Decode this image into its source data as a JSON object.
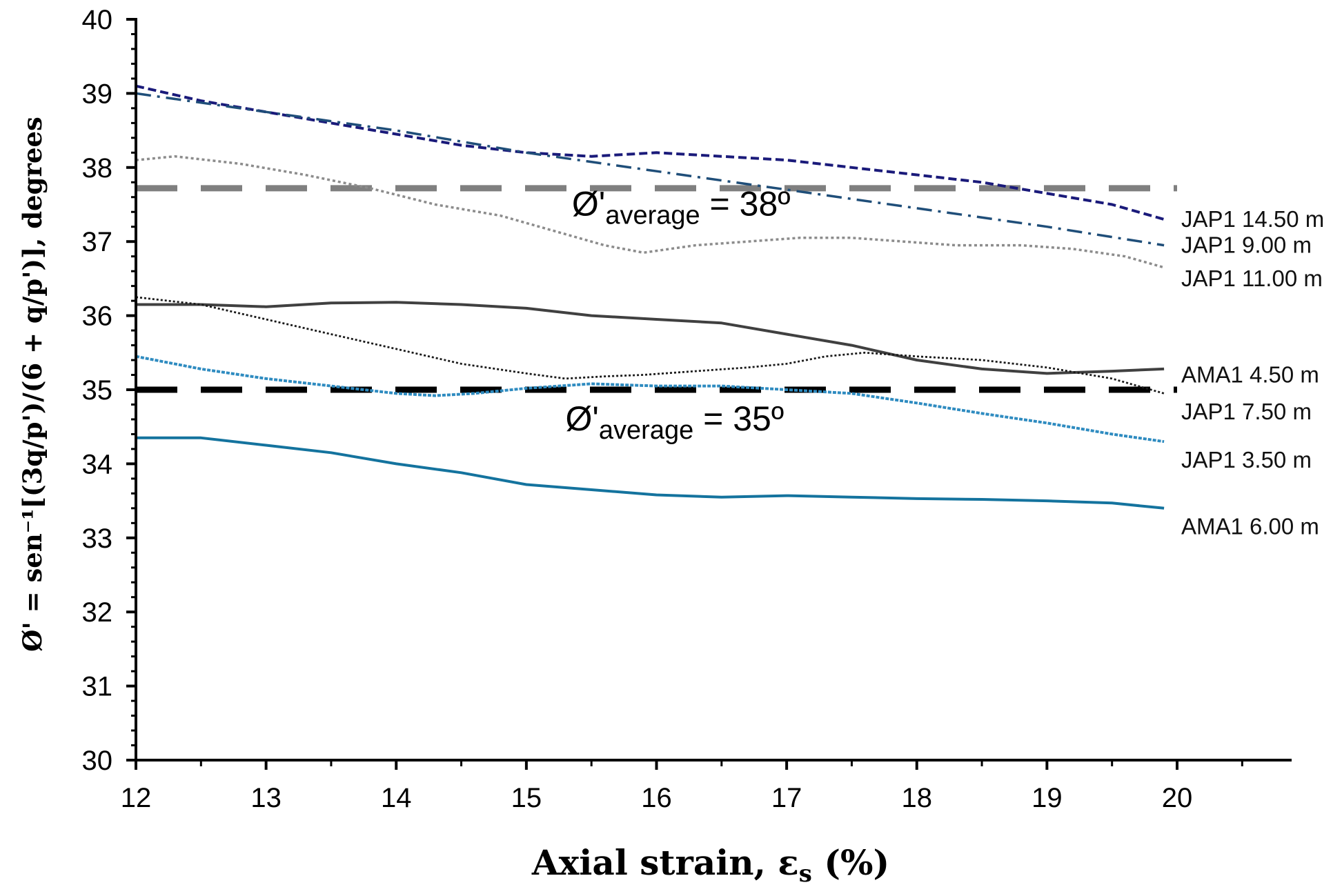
{
  "chart_data": {
    "type": "line",
    "title": "",
    "xlabel_prefix": "Axial strain, ε",
    "xlabel_sub": "s",
    "xlabel_suffix": " (%)",
    "ylabel": "Ø' = sen⁻¹[(3q/p')/(6 + q/p')], degrees",
    "xlim": [
      12,
      20.9
    ],
    "ylim": [
      30,
      40
    ],
    "x_ticks": [
      "12",
      "13",
      "14",
      "15",
      "16",
      "17",
      "18",
      "19",
      "20"
    ],
    "y_ticks": [
      "30",
      "31",
      "32",
      "33",
      "34",
      "35",
      "36",
      "37",
      "38",
      "39",
      "40"
    ],
    "grid": false,
    "series": [
      {
        "name": "JAP1 14.50 m",
        "color": "#1a1a7a",
        "dash": "dash-fine",
        "x": [
          12.0,
          12.5,
          13.0,
          13.5,
          14.0,
          14.5,
          15.0,
          15.5,
          16.0,
          16.5,
          17.0,
          17.5,
          18.0,
          18.5,
          19.0,
          19.5,
          19.9
        ],
        "y": [
          39.1,
          38.9,
          38.75,
          38.6,
          38.45,
          38.3,
          38.2,
          38.15,
          38.2,
          38.15,
          38.1,
          38.0,
          37.9,
          37.8,
          37.65,
          37.5,
          37.3
        ]
      },
      {
        "name": "JAP1 9.00 m",
        "color": "#1f4e79",
        "dash": "dash-dot",
        "x": [
          12.0,
          13.0,
          14.0,
          15.0,
          16.0,
          17.0,
          18.0,
          19.0,
          19.9
        ],
        "y": [
          39.0,
          38.75,
          38.5,
          38.2,
          37.95,
          37.7,
          37.45,
          37.2,
          36.95
        ]
      },
      {
        "name": "JAP1 11.00 m",
        "color": "#8c8c8c",
        "dash": "dot",
        "x": [
          12.0,
          12.3,
          12.8,
          13.3,
          13.8,
          14.3,
          14.8,
          15.2,
          15.6,
          15.9,
          16.3,
          16.7,
          17.1,
          17.5,
          17.9,
          18.3,
          18.8,
          19.2,
          19.6,
          19.9
        ],
        "y": [
          38.1,
          38.15,
          38.05,
          37.9,
          37.72,
          37.5,
          37.35,
          37.15,
          36.95,
          36.85,
          36.95,
          37.0,
          37.05,
          37.05,
          37.0,
          36.95,
          36.95,
          36.9,
          36.8,
          36.65
        ]
      },
      {
        "name": "AMA1 4.50 m",
        "color": "#404040",
        "dash": "solid",
        "x": [
          12.0,
          12.5,
          13.0,
          13.5,
          14.0,
          14.5,
          15.0,
          15.5,
          16.0,
          16.5,
          17.0,
          17.5,
          18.0,
          18.5,
          19.0,
          19.5,
          19.9
        ],
        "y": [
          36.15,
          36.15,
          36.12,
          36.17,
          36.18,
          36.15,
          36.1,
          36.0,
          35.95,
          35.9,
          35.75,
          35.6,
          35.4,
          35.28,
          35.22,
          35.25,
          35.28
        ]
      },
      {
        "name": "JAP1 7.50 m",
        "color": "#1a1a1a",
        "dash": "dot-fine",
        "x": [
          12.0,
          12.5,
          13.0,
          13.5,
          14.0,
          14.5,
          15.0,
          15.3,
          15.6,
          15.9,
          16.3,
          16.7,
          17.0,
          17.3,
          17.6,
          18.0,
          18.5,
          19.0,
          19.5,
          19.9
        ],
        "y": [
          36.25,
          36.15,
          35.95,
          35.75,
          35.55,
          35.35,
          35.22,
          35.15,
          35.18,
          35.2,
          35.25,
          35.3,
          35.35,
          35.45,
          35.5,
          35.45,
          35.4,
          35.3,
          35.15,
          34.95
        ]
      },
      {
        "name": "JAP1 3.50 m",
        "color": "#2e8bc0",
        "dash": "dot-dense",
        "x": [
          12.0,
          12.5,
          13.0,
          13.5,
          14.0,
          14.3,
          14.6,
          15.0,
          15.5,
          16.0,
          16.5,
          17.0,
          17.5,
          18.0,
          18.5,
          19.0,
          19.5,
          19.9
        ],
        "y": [
          35.45,
          35.28,
          35.15,
          35.05,
          34.95,
          34.92,
          34.95,
          35.02,
          35.08,
          35.05,
          35.05,
          35.0,
          34.95,
          34.82,
          34.68,
          34.55,
          34.4,
          34.3
        ]
      },
      {
        "name": "AMA1 6.00 m",
        "color": "#14739e",
        "dash": "solid",
        "x": [
          12.0,
          12.5,
          13.0,
          13.5,
          14.0,
          14.5,
          15.0,
          15.5,
          16.0,
          16.5,
          17.0,
          17.5,
          18.0,
          18.5,
          19.0,
          19.5,
          19.9
        ],
        "y": [
          34.35,
          34.35,
          34.25,
          34.15,
          34.0,
          33.88,
          33.72,
          33.65,
          33.58,
          33.55,
          33.57,
          33.55,
          33.53,
          33.52,
          33.5,
          33.47,
          33.4
        ]
      }
    ],
    "reference_lines": [
      {
        "y": 37.72,
        "x_start": 12.0,
        "x_end": 20.0,
        "color": "#7f7f7f",
        "label_prefix": "Ø'",
        "label_sub": "average",
        "label_suffix": " = 38º",
        "label_x": 15.35,
        "label_y": 37.35
      },
      {
        "y": 35.0,
        "x_start": 12.0,
        "x_end": 20.0,
        "color": "#000000",
        "label_prefix": "Ø'",
        "label_sub": "average",
        "label_suffix": " = 35º",
        "label_x": 15.3,
        "label_y": 34.45
      }
    ],
    "series_label_positions": [
      {
        "name": "JAP1 14.50 m",
        "y": 37.3
      },
      {
        "name": "JAP1 9.00 m",
        "y": 36.95
      },
      {
        "name": "JAP1 11.00 m",
        "y": 36.5
      },
      {
        "name": "AMA1 4.50 m",
        "y": 35.2
      },
      {
        "name": "JAP1 7.50 m",
        "y": 34.7
      },
      {
        "name": "JAP1 3.50 m",
        "y": 34.05
      },
      {
        "name": "AMA1 6.00 m",
        "y": 33.15
      }
    ]
  }
}
